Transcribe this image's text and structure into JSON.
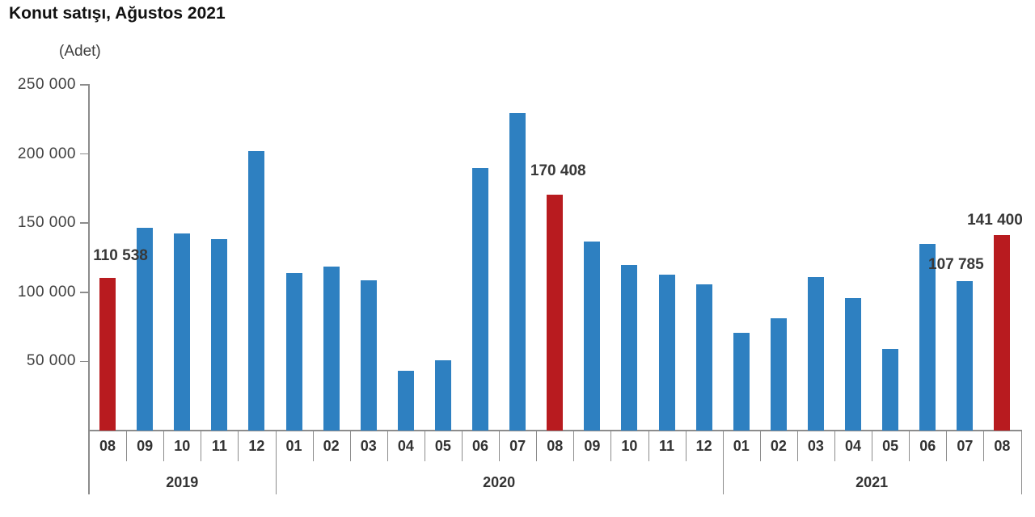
{
  "chart_data": {
    "type": "bar",
    "title": "Konut satışı, Ağustos 2021",
    "ylabel": "(Adet)",
    "xlabel": "",
    "ylim": [
      0,
      250000
    ],
    "grid": false,
    "legend": false,
    "ytick_values": [
      250000,
      200000,
      150000,
      100000,
      50000
    ],
    "ytick_labels": [
      "250 000",
      "200 000",
      "150 000",
      "100 000",
      "50 000"
    ],
    "categories": [
      "08",
      "09",
      "10",
      "11",
      "12",
      "01",
      "02",
      "03",
      "04",
      "05",
      "06",
      "07",
      "08",
      "09",
      "10",
      "11",
      "12",
      "01",
      "02",
      "03",
      "04",
      "05",
      "06",
      "07",
      "08"
    ],
    "values": [
      110538,
      146536,
      142810,
      138372,
      202074,
      113615,
      118753,
      108670,
      42979,
      50936,
      190012,
      229357,
      170408,
      136744,
      119574,
      112483,
      105981,
      70587,
      81222,
      111241,
      95863,
      59166,
      134731,
      107785,
      141400
    ],
    "year_groups": [
      {
        "label": "2019",
        "span": 5
      },
      {
        "label": "2020",
        "span": 12
      },
      {
        "label": "2021",
        "span": 8
      }
    ],
    "highlighted_indices": [
      0,
      12,
      24
    ],
    "data_labels": [
      {
        "index": 0,
        "text": "110 538"
      },
      {
        "index": 12,
        "text": "170 408"
      },
      {
        "index": 23,
        "text": "107 785"
      },
      {
        "index": 24,
        "text": "141 400"
      }
    ],
    "colors": {
      "bar": "#2e80c1",
      "bar_highlight": "#b81b1f",
      "axis": "#8c8c8c",
      "text": "#3f3f3f"
    }
  }
}
